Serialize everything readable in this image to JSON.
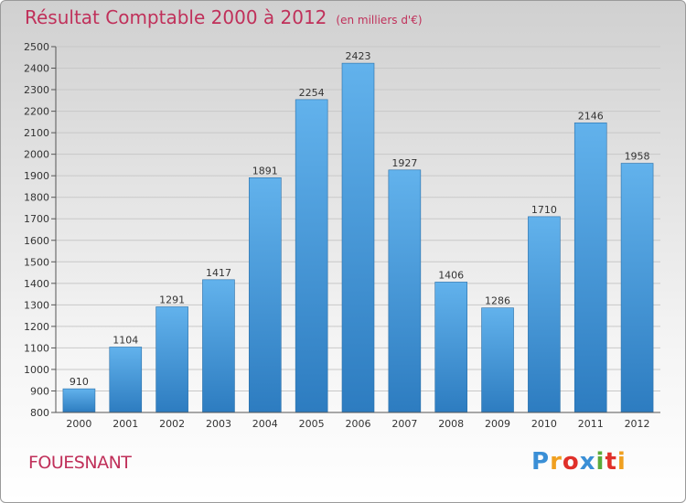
{
  "chart_data": {
    "type": "bar",
    "title": "Résultat Comptable 2000 à 2012",
    "subtitle": "(en milliers d'€)",
    "categories": [
      "2000",
      "2001",
      "2002",
      "2003",
      "2004",
      "2005",
      "2006",
      "2007",
      "2008",
      "2009",
      "2010",
      "2011",
      "2012"
    ],
    "values": [
      910,
      1104,
      1291,
      1417,
      1891,
      2254,
      2423,
      1927,
      1406,
      1286,
      1710,
      2146,
      1958
    ],
    "ylim": [
      800,
      2500
    ],
    "ytick_step": 100,
    "xlabel": "",
    "ylabel": "",
    "grid": true,
    "bar_color": "#3a8fd6"
  },
  "location": "FOUESNANT",
  "logo": {
    "letters": [
      "P",
      "r",
      "o",
      "x",
      "i",
      "t",
      "i"
    ],
    "colors": [
      "#3a8fd6",
      "#f0a020",
      "#e0302a",
      "#3a8fd6",
      "#5aaa3a",
      "#e0302a",
      "#f0a020"
    ]
  }
}
